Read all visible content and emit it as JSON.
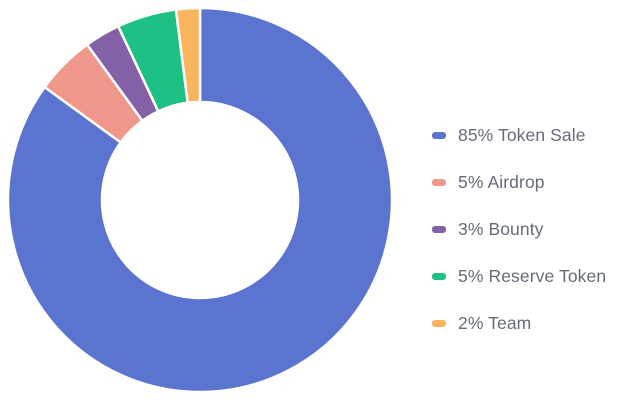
{
  "chart_data": {
    "type": "pie",
    "variant": "donut",
    "title": "",
    "legend_placement": "right",
    "slices": [
      {
        "label": "85% Token Sale",
        "value": 85,
        "color": "#5a74d0"
      },
      {
        "label": "5% Airdrop",
        "value": 5,
        "color": "#ef978a"
      },
      {
        "label": "3% Bounty",
        "value": 3,
        "color": "#8460a6"
      },
      {
        "label": "5% Reserve Token",
        "value": 5,
        "color": "#1ec184"
      },
      {
        "label": "2% Team",
        "value": 2,
        "color": "#fbb45e"
      }
    ]
  }
}
